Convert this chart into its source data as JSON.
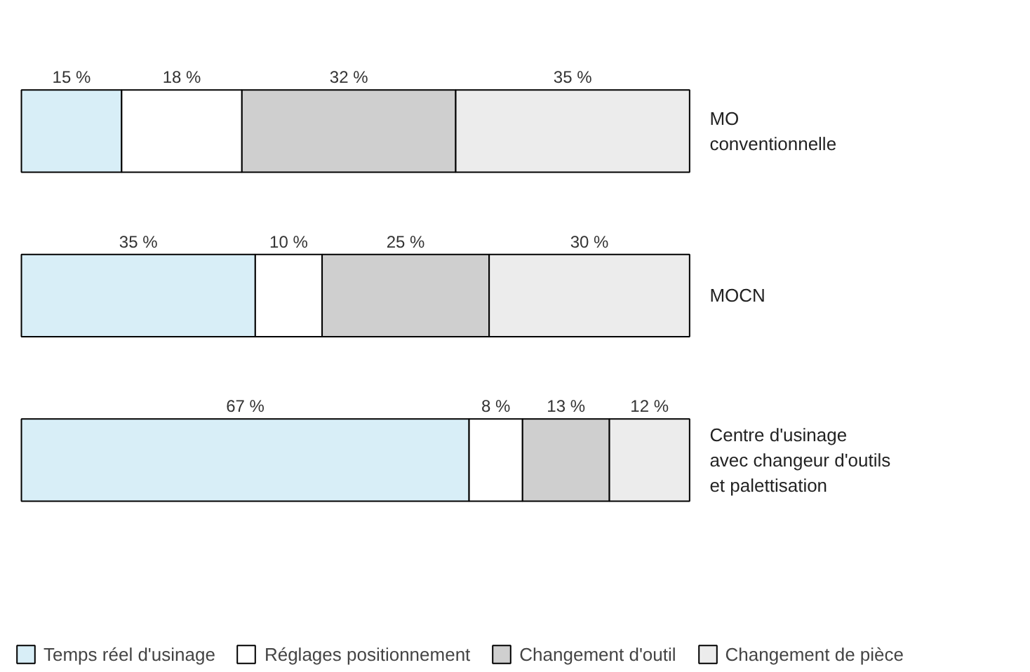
{
  "chart_data": {
    "type": "bar",
    "orientation": "horizontal",
    "stacked": true,
    "tick_labels": false,
    "grid": false,
    "legend": "bottom",
    "categories": [
      "MO\nconventionnelle",
      "MOCN",
      "Centre d'usinage\navec changeur d'outils\net palettisation"
    ],
    "series": [
      {
        "name": "Temps réel d'usinage",
        "color": "#d8eef7",
        "values": [
          15,
          35,
          67
        ],
        "value_labels": [
          "15 %",
          "35 %",
          "67 %"
        ]
      },
      {
        "name": "Réglages positionnement",
        "color": "#ffffff",
        "values": [
          18,
          10,
          8
        ],
        "value_labels": [
          "18 %",
          "10 %",
          "8 %"
        ]
      },
      {
        "name": "Changement d'outil",
        "color": "#cfcfcf",
        "values": [
          32,
          25,
          13
        ],
        "value_labels": [
          "32 %",
          "25 %",
          "13 %"
        ]
      },
      {
        "name": "Changement de pièce",
        "color": "#ececec",
        "values": [
          35,
          30,
          12
        ],
        "value_labels": [
          "35 %",
          "30 %",
          "12 %"
        ]
      }
    ]
  }
}
